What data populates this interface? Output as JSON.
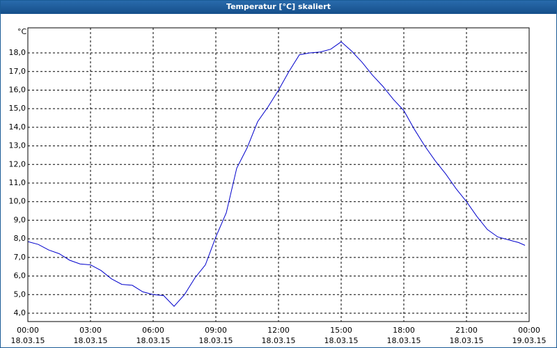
{
  "chart_data": {
    "type": "line",
    "title": "Temperatur [°C] skaliert",
    "y_label": "°C",
    "x": [
      0,
      0.5,
      1,
      1.5,
      2,
      2.5,
      3,
      3.5,
      4,
      4.5,
      5,
      5.5,
      6,
      6.5,
      7,
      7.5,
      8,
      8.5,
      9,
      9.5,
      10,
      10.5,
      11,
      11.5,
      12,
      12.5,
      13,
      13.5,
      14,
      14.5,
      15,
      15.5,
      16,
      16.5,
      17,
      17.5,
      18,
      18.5,
      19,
      19.5,
      20,
      20.5,
      21,
      21.5,
      22,
      22.5,
      23,
      23.5,
      23.8
    ],
    "series": [
      {
        "name": "Temperatur",
        "color": "#0000cc",
        "values": [
          7.85,
          7.7,
          7.4,
          7.2,
          6.85,
          6.65,
          6.6,
          6.3,
          5.85,
          5.55,
          5.5,
          5.15,
          5.0,
          4.95,
          4.37,
          5.0,
          5.9,
          6.6,
          8.1,
          9.4,
          11.8,
          12.9,
          14.3,
          15.1,
          16.0,
          17.0,
          17.9,
          18.0,
          18.05,
          18.2,
          18.6,
          18.1,
          17.5,
          16.8,
          16.2,
          15.5,
          14.9,
          13.9,
          13.0,
          12.2,
          11.5,
          10.7,
          10.0,
          9.2,
          8.5,
          8.1,
          7.95,
          7.8,
          7.65
        ]
      }
    ],
    "xlim": [
      0,
      24
    ],
    "xticks": [
      {
        "value": 0,
        "label": "00:00",
        "date": "18.03.15"
      },
      {
        "value": 3,
        "label": "03:00",
        "date": "18.03.15"
      },
      {
        "value": 6,
        "label": "06:00",
        "date": "18.03.15"
      },
      {
        "value": 9,
        "label": "09:00",
        "date": "18.03.15"
      },
      {
        "value": 12,
        "label": "12:00",
        "date": "18.03.15"
      },
      {
        "value": 15,
        "label": "15:00",
        "date": "18.03.15"
      },
      {
        "value": 18,
        "label": "18:00",
        "date": "18.03.15"
      },
      {
        "value": 21,
        "label": "21:00",
        "date": "18.03.15"
      },
      {
        "value": 24,
        "label": "00:00",
        "date": "19.03.15"
      }
    ],
    "ylim": [
      3.55,
      19.35
    ],
    "yticks": [
      {
        "value": 4,
        "label": "4,0"
      },
      {
        "value": 5,
        "label": "5,0"
      },
      {
        "value": 6,
        "label": "6,0"
      },
      {
        "value": 7,
        "label": "7,0"
      },
      {
        "value": 8,
        "label": "8,0"
      },
      {
        "value": 9,
        "label": "9,0"
      },
      {
        "value": 10,
        "label": "10,0"
      },
      {
        "value": 11,
        "label": "11,0"
      },
      {
        "value": 12,
        "label": "12,0"
      },
      {
        "value": 13,
        "label": "13,0"
      },
      {
        "value": 14,
        "label": "14,0"
      },
      {
        "value": 15,
        "label": "15,0"
      },
      {
        "value": 16,
        "label": "16,0"
      },
      {
        "value": 17,
        "label": "17,0"
      },
      {
        "value": 18,
        "label": "18,0"
      }
    ],
    "grid": true
  }
}
